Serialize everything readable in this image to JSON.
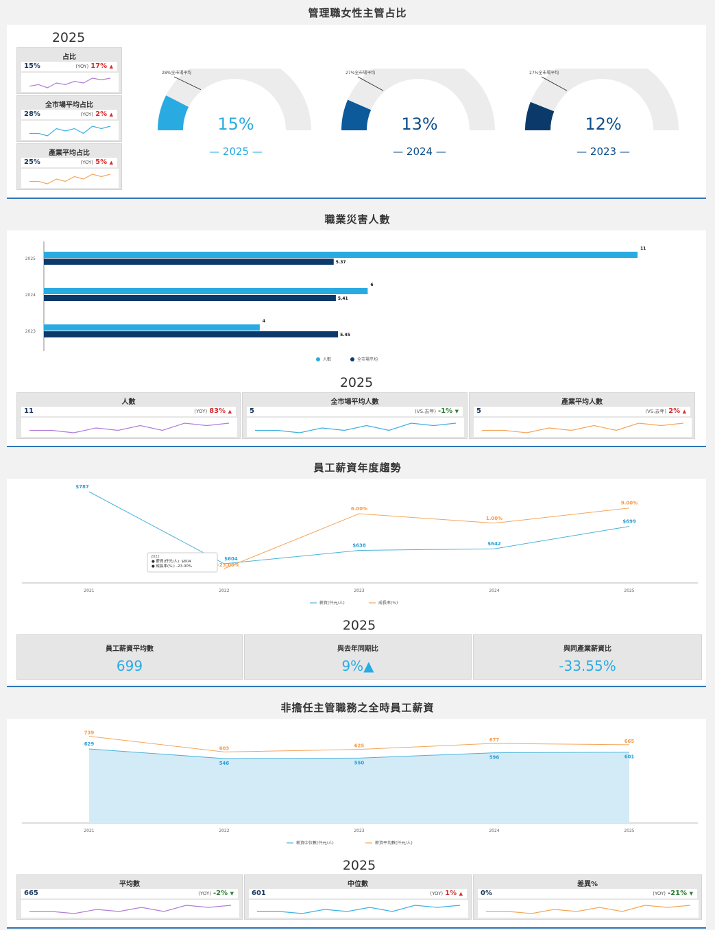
{
  "section1": {
    "title": "管理職女性主管占比",
    "year": "2025",
    "kpis": [
      {
        "label": "占比",
        "value": "15%",
        "prefix": "(YOY)",
        "change": "17%",
        "dir": "up",
        "color": "#b07cd8",
        "spark": [
          3,
          4,
          2,
          5,
          4,
          6,
          5,
          8,
          7,
          8
        ]
      },
      {
        "label": "全市場平均占比",
        "value": "28%",
        "prefix": "(YOY)",
        "change": "2%",
        "dir": "up",
        "color": "#3cb0e0",
        "spark": [
          3,
          3,
          2,
          5,
          4,
          5,
          3,
          6,
          5,
          6
        ]
      },
      {
        "label": "產業平均占比",
        "value": "25%",
        "prefix": "(YOY)",
        "change": "5%",
        "dir": "up",
        "color": "#f5a55a",
        "spark": [
          3,
          3,
          2,
          4,
          3,
          5,
          4,
          6,
          5,
          6
        ]
      }
    ],
    "gauges": [
      {
        "note": "28%全市場平均",
        "value": 15,
        "value_text": "15%",
        "avg": 28,
        "year_label": "— 2025 —",
        "color": "#29abe2"
      },
      {
        "note": "27%全市場平均",
        "value": 13,
        "value_text": "13%",
        "avg": 27,
        "year_label": "— 2024 —",
        "color": "#0d5a9b"
      },
      {
        "note": "27%全市場平均",
        "value": 12,
        "value_text": "12%",
        "avg": 27,
        "year_label": "— 2023 —",
        "color": "#0b3a6a"
      }
    ]
  },
  "section2": {
    "title": "職業災害人數",
    "year": "2025",
    "chart_data": {
      "type": "bar",
      "categories": [
        "2025",
        "2024",
        "2023"
      ],
      "series": [
        {
          "name": "人數",
          "values": [
            11,
            6,
            4
          ],
          "labels": [
            "11",
            "6",
            "4"
          ],
          "color": "#29abe2"
        },
        {
          "name": "全市場平均",
          "values": [
            5.37,
            5.41,
            5.45
          ],
          "labels": [
            "5.37",
            "5.41",
            "5.45"
          ],
          "color": "#0b3a6a"
        }
      ],
      "xlim": [
        0,
        12
      ]
    },
    "kpis": [
      {
        "label": "人數",
        "value": "11",
        "prefix": "(YOY)",
        "change": "83%",
        "dir": "up",
        "color": "#b07cd8",
        "spark": [
          4,
          4,
          3,
          5,
          4,
          6,
          4,
          7,
          6,
          7
        ]
      },
      {
        "label": "全市場平均人數",
        "value": "5",
        "prefix": "(VS.去年)",
        "change": "-1%",
        "dir": "down",
        "color": "#3cb0e0",
        "spark": [
          4,
          4,
          3,
          5,
          4,
          6,
          4,
          7,
          6,
          7
        ]
      },
      {
        "label": "產業平均人數",
        "value": "5",
        "prefix": "(VS.去年)",
        "change": "2%",
        "dir": "up",
        "color": "#f5a55a",
        "spark": [
          4,
          4,
          3,
          5,
          4,
          6,
          4,
          7,
          6,
          7
        ]
      }
    ]
  },
  "section3": {
    "title": "員工薪資年度趨勢",
    "year": "2025",
    "chart_data": {
      "type": "line",
      "x": [
        "2021",
        "2022",
        "2023",
        "2024",
        "2025"
      ],
      "series": [
        {
          "name": "薪資(仟元/人)",
          "values": [
            787,
            604,
            638,
            642,
            699
          ],
          "labels": [
            "$787",
            "$604",
            "$638",
            "$642",
            "$699"
          ],
          "color": "#4ab3d9"
        },
        {
          "name": "成長率(%)",
          "values": [
            null,
            -23,
            6,
            1,
            9
          ],
          "labels": [
            "",
            "-23.00%",
            "6.00%",
            "1.00%",
            "9.00%"
          ],
          "color": "#f5a55a"
        }
      ],
      "tooltip": {
        "title": "2022",
        "line1": "薪資(仟元/人): $604",
        "line2": "成長率(%): -23.00%"
      }
    },
    "kpis": [
      {
        "label": "員工薪資平均數",
        "value": "699"
      },
      {
        "label": "與去年同期比",
        "value": "9%▲"
      },
      {
        "label": "與同產業薪資比",
        "value": "-33.55%"
      }
    ]
  },
  "section4": {
    "title": "非擔任主管職務之全時員工薪資",
    "year": "2025",
    "chart_data": {
      "type": "area",
      "x": [
        "2021",
        "2022",
        "2023",
        "2024",
        "2025"
      ],
      "series": [
        {
          "name": "薪資中位數(仟元/人)",
          "values": [
            629,
            546,
            550,
            596,
            601
          ],
          "color": "#4ab3d9"
        },
        {
          "name": "薪資平均數(仟元/人)",
          "values": [
            739,
            603,
            625,
            677,
            665
          ],
          "color": "#f5a55a"
        }
      ]
    },
    "kpis": [
      {
        "label": "平均數",
        "value": "665",
        "prefix": "(YOY)",
        "change": "-2%",
        "dir": "down",
        "color": "#b07cd8",
        "spark": [
          4,
          4,
          3,
          5,
          4,
          6,
          4,
          7,
          6,
          7
        ]
      },
      {
        "label": "中位數",
        "value": "601",
        "prefix": "(YOY)",
        "change": "1%",
        "dir": "up",
        "color": "#3cb0e0",
        "spark": [
          4,
          4,
          3,
          5,
          4,
          6,
          4,
          7,
          6,
          7
        ]
      },
      {
        "label": "差異%",
        "value": "0%",
        "prefix": "(YOY)",
        "change": "-21%",
        "dir": "down",
        "color": "#f5a55a",
        "spark": [
          4,
          4,
          3,
          5,
          4,
          6,
          4,
          7,
          6,
          7
        ]
      }
    ]
  }
}
